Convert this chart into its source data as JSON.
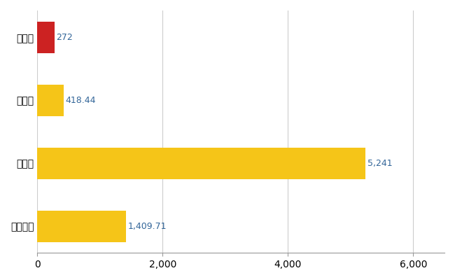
{
  "categories": [
    "石川町",
    "県平均",
    "県最大",
    "全国平均"
  ],
  "values": [
    272,
    418.44,
    5241,
    1409.71
  ],
  "labels": [
    "272",
    "418.44",
    "5,241",
    "1,409.71"
  ],
  "colors": [
    "#cc2222",
    "#f5c518",
    "#f5c518",
    "#f5c518"
  ],
  "xlim": [
    0,
    6500
  ],
  "xticks": [
    0,
    2000,
    4000,
    6000
  ],
  "background_color": "#ffffff",
  "grid_color": "#cccccc",
  "label_color": "#336699",
  "label_fontsize": 9,
  "tick_fontsize": 10,
  "bar_height": 0.5
}
